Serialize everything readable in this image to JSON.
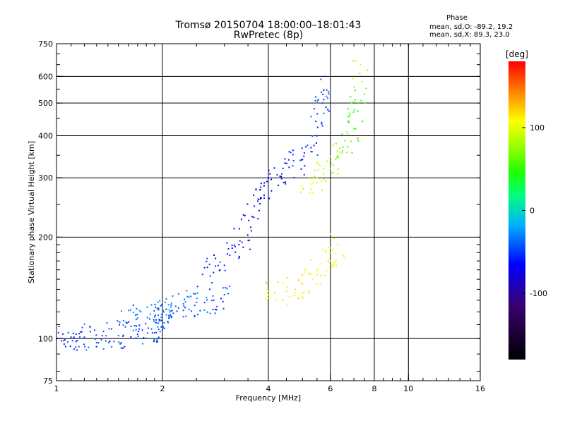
{
  "chart_data": {
    "type": "scatter",
    "title": "Tromsø 20150704 18:00:00–18:01:43",
    "subtitle": "RwPretec (8p)",
    "xlabel": "Frequency [MHz]",
    "ylabel": "Stationary phase Virtual Height [km]",
    "xscale": "log",
    "yscale": "log",
    "xlim": [
      1,
      16
    ],
    "ylim": [
      75,
      750
    ],
    "xticks": [
      1,
      2,
      4,
      6,
      8,
      10,
      16
    ],
    "xtick_labels": [
      "1",
      "2",
      "4",
      "6",
      "8",
      "10",
      "16"
    ],
    "yticks": [
      75,
      100,
      200,
      300,
      400,
      500,
      600,
      750
    ],
    "ytick_labels": [
      "75",
      "100",
      "200",
      "300",
      "400",
      "500",
      "600",
      "750"
    ],
    "xgrid": [
      2,
      4,
      6,
      8,
      10
    ],
    "ygrid": [
      100,
      200,
      300,
      400,
      500,
      600
    ],
    "grid": true,
    "phase_stats": {
      "heading": "Phase",
      "line_o": "mean, sd,O: -89.2, 19.2",
      "line_x": "mean, sd,X: 89.3, 23.0"
    },
    "colorbar": {
      "label": "[deg]",
      "range": [
        -180,
        180
      ],
      "ticks": [
        100,
        0,
        -100
      ],
      "tick_labels": [
        "100",
        "0",
        "-100"
      ]
    },
    "trace_groups": [
      {
        "name": "o-low-trace",
        "points": [
          [
            1.0,
            100,
            -90
          ],
          [
            1.1,
            101,
            -95
          ],
          [
            1.2,
            101,
            -92
          ],
          [
            1.35,
            102,
            -90
          ],
          [
            1.5,
            102,
            -88
          ],
          [
            1.7,
            103,
            -92
          ],
          [
            1.9,
            104,
            -90
          ],
          [
            2.0,
            106,
            -85
          ],
          [
            2.02,
            120,
            -80
          ],
          [
            2.05,
            122,
            -75
          ]
        ]
      },
      {
        "name": "o-lower-layer",
        "points": [
          [
            1.55,
            113,
            -85
          ],
          [
            1.7,
            115,
            -80
          ],
          [
            1.9,
            116,
            -85
          ],
          [
            2.1,
            120,
            -78
          ],
          [
            2.3,
            125,
            -80
          ],
          [
            2.5,
            128,
            -85
          ],
          [
            2.8,
            130,
            -90
          ],
          [
            3.0,
            135,
            -88
          ]
        ]
      },
      {
        "name": "o-upper-layer",
        "points": [
          [
            2.6,
            155,
            -95
          ],
          [
            3.0,
            165,
            -100
          ],
          [
            3.3,
            190,
            -110
          ],
          [
            3.6,
            230,
            -120
          ],
          [
            3.8,
            260,
            -115
          ],
          [
            4.0,
            300,
            -110
          ],
          [
            4.4,
            320,
            -105
          ],
          [
            5.0,
            340,
            -100
          ],
          [
            5.5,
            400,
            -95
          ],
          [
            5.7,
            500,
            -90
          ],
          [
            5.8,
            600,
            -90
          ]
        ]
      },
      {
        "name": "x-lower-trace",
        "points": [
          [
            4.0,
            135,
            100
          ],
          [
            4.5,
            138,
            110
          ],
          [
            5.0,
            145,
            105
          ],
          [
            5.5,
            155,
            100
          ],
          [
            6.0,
            170,
            95
          ],
          [
            6.3,
            190,
            85
          ]
        ]
      },
      {
        "name": "x-upper-trace",
        "points": [
          [
            5.0,
            280,
            90
          ],
          [
            5.5,
            300,
            85
          ],
          [
            6.0,
            320,
            60
          ],
          [
            6.5,
            360,
            40
          ],
          [
            7.0,
            420,
            30
          ],
          [
            7.2,
            500,
            20
          ],
          [
            7.3,
            650,
            80
          ]
        ]
      }
    ]
  }
}
